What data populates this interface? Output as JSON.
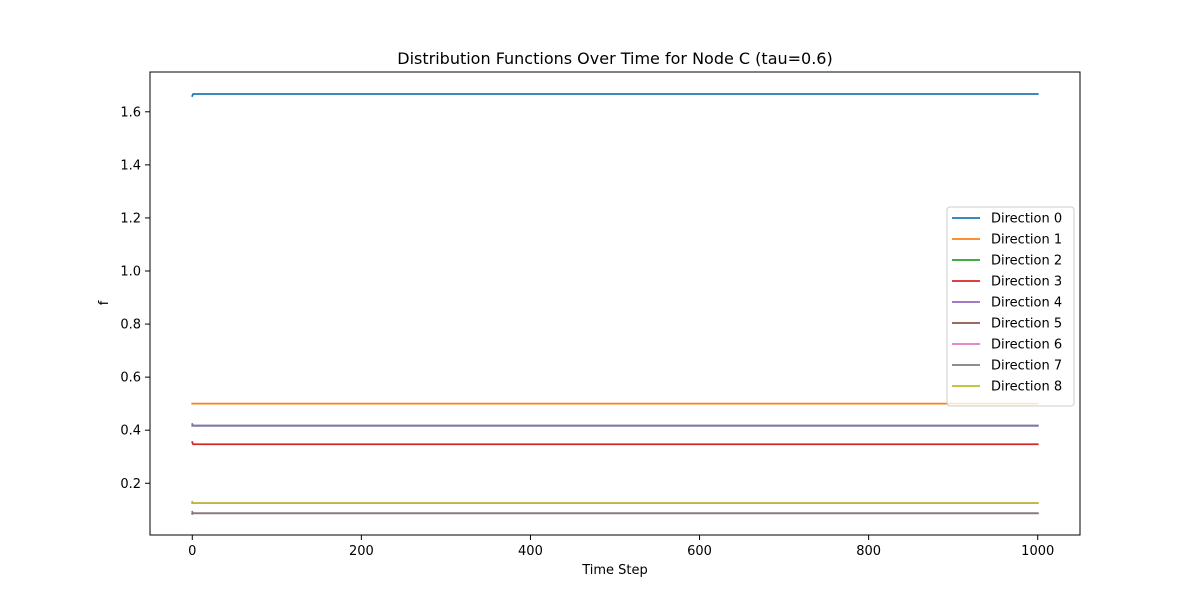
{
  "chart_data": {
    "type": "line",
    "title": "Distribution Functions Over Time for Node C (tau=0.6)",
    "xlabel": "Time Step",
    "ylabel": "f",
    "xlim": [
      -50,
      1050
    ],
    "ylim": [
      0.005,
      1.75
    ],
    "xticks": [
      0,
      200,
      400,
      600,
      800,
      1000
    ],
    "yticks": [
      0.2,
      0.4,
      0.6,
      0.8,
      1.0,
      1.2,
      1.4,
      1.6
    ],
    "ytick_labels": [
      "0.2",
      "0.4",
      "0.6",
      "0.8",
      "1.0",
      "1.2",
      "1.4",
      "1.6"
    ],
    "grid": false,
    "legend_position": "center-right",
    "x": [
      0,
      1,
      2,
      1000
    ],
    "series": [
      {
        "name": "Direction 0",
        "color": "#1f77b4",
        "values": [
          1.66,
          1.667,
          1.667,
          1.667
        ]
      },
      {
        "name": "Direction 1",
        "color": "#ff7f0e",
        "values": [
          0.5,
          0.5,
          0.5,
          0.5
        ]
      },
      {
        "name": "Direction 2",
        "color": "#2ca02c",
        "values": [
          0.417,
          0.417,
          0.417,
          0.417
        ]
      },
      {
        "name": "Direction 3",
        "color": "#d62728",
        "values": [
          0.355,
          0.347,
          0.347,
          0.347
        ]
      },
      {
        "name": "Direction 4",
        "color": "#9467bd",
        "values": [
          0.423,
          0.417,
          0.417,
          0.417
        ]
      },
      {
        "name": "Direction 5",
        "color": "#8c564b",
        "values": [
          0.085,
          0.087,
          0.087,
          0.087
        ]
      },
      {
        "name": "Direction 6",
        "color": "#e377c2",
        "values": [
          0.125,
          0.125,
          0.125,
          0.125
        ]
      },
      {
        "name": "Direction 7",
        "color": "#7f7f7f",
        "values": [
          0.092,
          0.087,
          0.087,
          0.087
        ]
      },
      {
        "name": "Direction 8",
        "color": "#bcbd22",
        "values": [
          0.13,
          0.125,
          0.125,
          0.125
        ]
      }
    ]
  }
}
